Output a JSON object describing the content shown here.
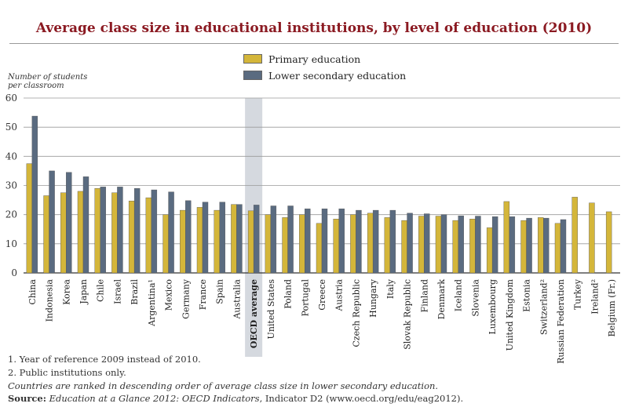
{
  "chart_data": {
    "type": "bar",
    "title": "Average class size in educational institutions, by level of education (2010)",
    "ylabel": "Number of students per classroom",
    "ylim": [
      0,
      60
    ],
    "yticks": [
      0,
      10,
      20,
      30,
      40,
      50,
      60
    ],
    "categories": [
      "China",
      "Indonesia",
      "Korea",
      "Japan",
      "Chile",
      "Israel",
      "Brazil",
      "Argentina¹",
      "Mexico",
      "Germany",
      "France",
      "Spain",
      "Australia",
      "OECD average",
      "United States",
      "Poland",
      "Portugal",
      "Greece",
      "Austria",
      "Czech Republic",
      "Hungary",
      "Italy",
      "Slovak Republic",
      "Finland",
      "Denmark",
      "Iceland",
      "Slovenia",
      "Luxembourg",
      "United Kingdom",
      "Estonia",
      "Switzerland²",
      "Russian Federation",
      "Turkey",
      "Ireland²",
      "Belgium (Fr.)"
    ],
    "highlight_category": "OECD average",
    "series": [
      {
        "name": "Primary education",
        "color": "#d4b63a",
        "values": [
          37.5,
          26.5,
          27.5,
          28.0,
          29.0,
          27.5,
          24.7,
          25.8,
          20.0,
          21.5,
          22.5,
          21.5,
          23.5,
          21.3,
          20.0,
          19.0,
          20.0,
          17.0,
          18.5,
          20.0,
          20.5,
          19.0,
          18.0,
          19.5,
          19.5,
          18.0,
          18.5,
          15.5,
          24.5,
          18.0,
          19.0,
          17.0,
          26.0,
          24.0,
          21.0
        ]
      },
      {
        "name": "Lower secondary education",
        "color": "#5a6b80",
        "values": [
          53.8,
          35.0,
          34.5,
          33.0,
          29.5,
          29.5,
          29.0,
          28.5,
          27.8,
          24.8,
          24.3,
          24.3,
          23.5,
          23.3,
          23.0,
          23.0,
          22.0,
          22.0,
          22.0,
          21.5,
          21.5,
          21.5,
          20.5,
          20.3,
          20.0,
          19.6,
          19.5,
          19.3,
          19.3,
          18.8,
          18.8,
          18.3,
          null,
          null,
          null
        ]
      }
    ]
  },
  "legend": {
    "primary_label": "Primary education",
    "secondary_label": "Lower secondary education"
  },
  "ylabel_line1": "Number of students",
  "ylabel_line2": "per classroom",
  "footnotes": {
    "note1": "1. Year of reference 2009 instead of 2010.",
    "note2": "2. Public institutions only.",
    "sorting": "Countries are ranked in descending order of average class size in lower secondary education.",
    "source_label": "Source:",
    "source_pub": "Education at a Glance 2012: OECD Indicators",
    "source_rest": ", Indicator D2 (www.oecd.org/edu/eag2012)."
  }
}
